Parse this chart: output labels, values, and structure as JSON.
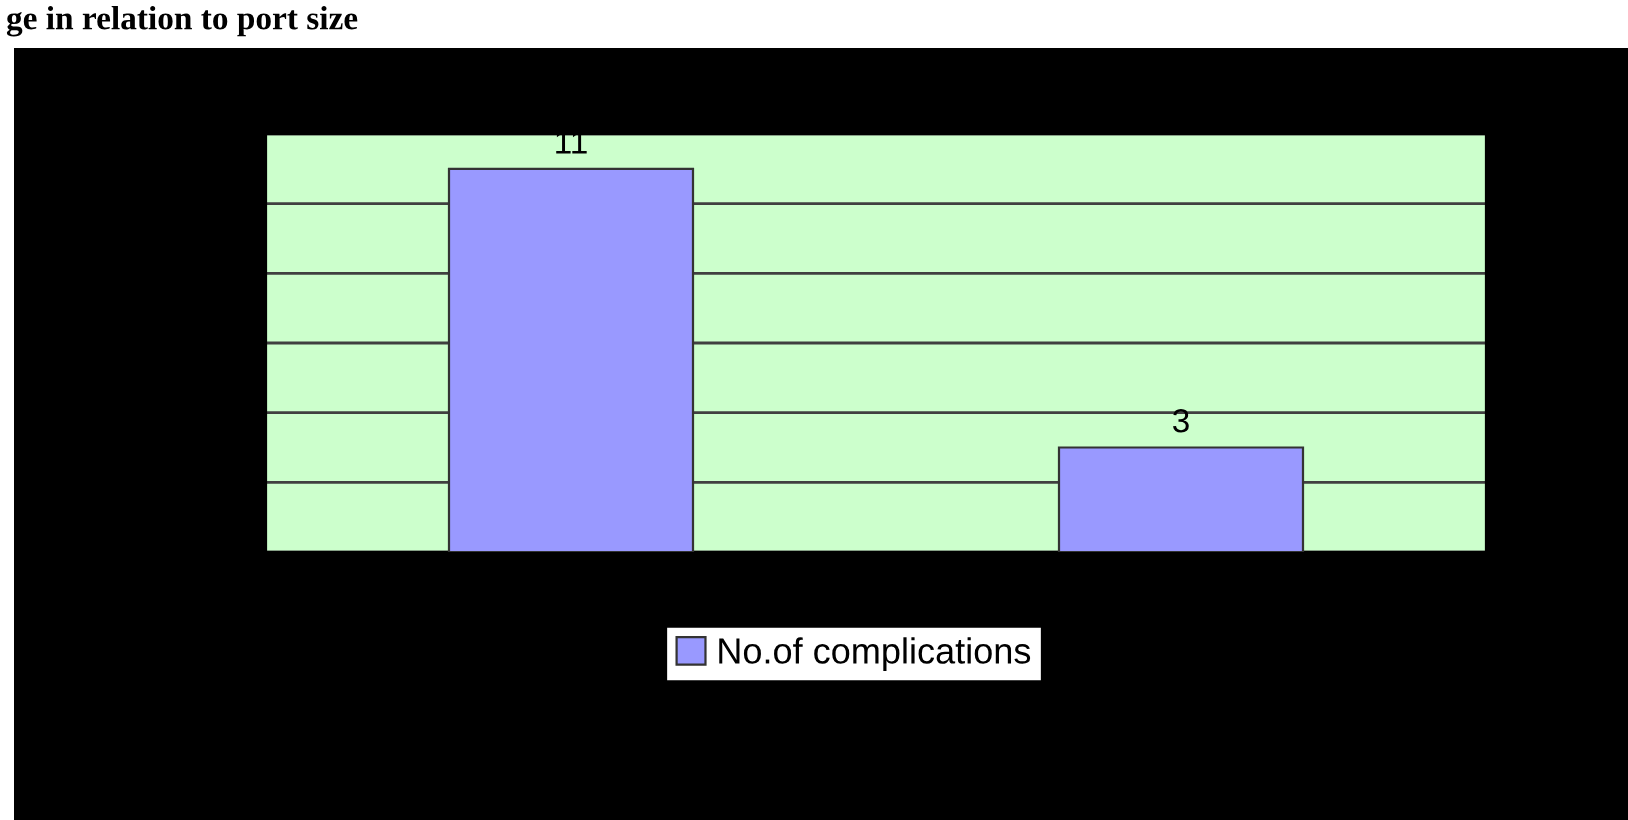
{
  "chart_data": {
    "type": "bar",
    "title": "ge in relation to port size",
    "categories": [
      null,
      null
    ],
    "series": [
      {
        "name": "No.of complications",
        "color": "#9999ff",
        "values": [
          11,
          3
        ]
      }
    ],
    "ylim": [
      0,
      12
    ],
    "yticks": [
      0,
      2,
      4,
      6,
      8,
      10,
      12
    ],
    "grid": "y",
    "legend": "bottom",
    "tick_labels": false,
    "data_labels": true
  }
}
